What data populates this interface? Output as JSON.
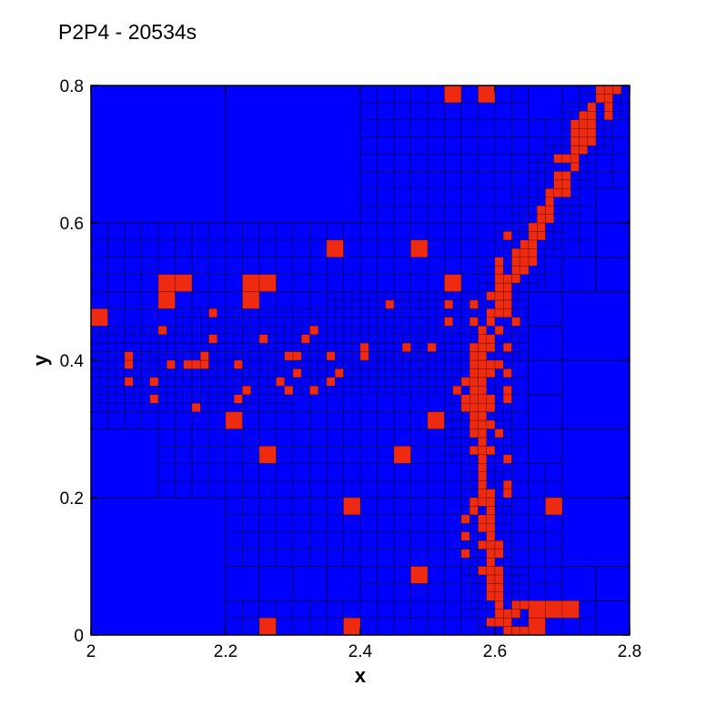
{
  "chart_data": {
    "type": "heatmap",
    "title": "P2P4 - 20534s",
    "xlabel": "x",
    "ylabel": "y",
    "xlim": [
      2.0,
      2.8
    ],
    "ylim": [
      0.0,
      0.8
    ],
    "xticks": [
      "2",
      "2.2",
      "2.4",
      "2.6",
      "2.8"
    ],
    "yticks": [
      "0",
      "0.2",
      "0.4",
      "0.6",
      "0.8"
    ],
    "xtick_values": [
      2.0,
      2.2,
      2.4,
      2.6,
      2.8
    ],
    "ytick_values": [
      0.0,
      0.2,
      0.4,
      0.6,
      0.8
    ],
    "grid": "adaptive-mesh",
    "colors": {
      "mesh_fill": "#0000ff",
      "mesh_line": "#00003a",
      "refined_cell": "#ee2a10",
      "background": "#ffffff"
    },
    "refined_regions": [
      {
        "x0": 2.33,
        "y0": 0.2,
        "x1": 2.62,
        "y1": 0.8
      },
      {
        "x0": 2.0,
        "y0": 0.3,
        "x1": 2.6,
        "y1": 0.58
      },
      {
        "x0": 2.08,
        "y0": 0.12,
        "x1": 2.48,
        "y1": 0.44
      },
      {
        "x0": 2.0,
        "y0": 0.0,
        "x1": 2.77,
        "y1": 0.05
      },
      {
        "x0": 2.42,
        "y0": 0.0,
        "x1": 2.72,
        "y1": 0.24
      },
      {
        "x0": 2.53,
        "y0": 0.2,
        "x1": 2.64,
        "y1": 0.8
      }
    ],
    "front_path": [
      {
        "x": 2.62,
        "y": 0.0
      },
      {
        "x": 2.603,
        "y": 0.05
      },
      {
        "x": 2.595,
        "y": 0.1
      },
      {
        "x": 2.59,
        "y": 0.15
      },
      {
        "x": 2.585,
        "y": 0.2
      },
      {
        "x": 2.58,
        "y": 0.25
      },
      {
        "x": 2.578,
        "y": 0.3
      },
      {
        "x": 2.575,
        "y": 0.35
      },
      {
        "x": 2.578,
        "y": 0.4
      },
      {
        "x": 2.59,
        "y": 0.45
      },
      {
        "x": 2.613,
        "y": 0.5
      },
      {
        "x": 2.64,
        "y": 0.55
      },
      {
        "x": 2.665,
        "y": 0.6
      },
      {
        "x": 2.69,
        "y": 0.65
      },
      {
        "x": 2.717,
        "y": 0.7
      },
      {
        "x": 2.745,
        "y": 0.75
      },
      {
        "x": 2.775,
        "y": 0.8
      }
    ],
    "crack_path": [
      {
        "x": 2.0,
        "y": 0.39
      },
      {
        "x": 2.1,
        "y": 0.385
      },
      {
        "x": 2.2,
        "y": 0.4
      },
      {
        "x": 2.3,
        "y": 0.41
      },
      {
        "x": 2.4,
        "y": 0.42
      },
      {
        "x": 2.5,
        "y": 0.43
      },
      {
        "x": 2.575,
        "y": 0.44
      }
    ]
  }
}
